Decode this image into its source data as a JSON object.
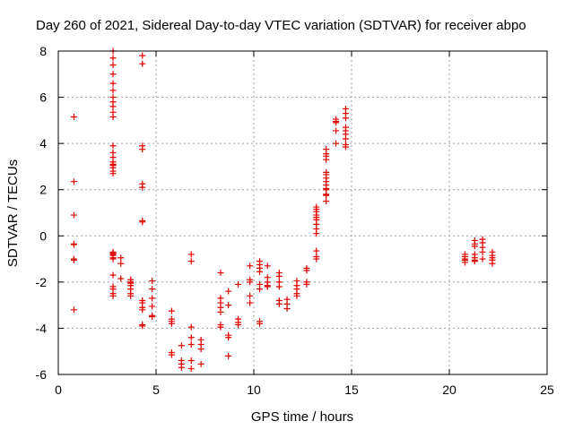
{
  "chart_data": {
    "type": "scatter",
    "title": "Day 260 of 2021, Sidereal Day-to-day VTEC variation (SDTVAR) for receiver abpo",
    "xlabel": "GPS time / hours",
    "ylabel": "SDTVAR / TECUs",
    "xlim": [
      0,
      25
    ],
    "ylim": [
      -6,
      8
    ],
    "xticks": [
      0,
      5,
      10,
      15,
      20,
      25
    ],
    "yticks": [
      -6,
      -4,
      -2,
      0,
      2,
      4,
      6,
      8
    ],
    "xtick_labels": [
      "0",
      "5",
      "10",
      "15",
      "20",
      "25"
    ],
    "ytick_labels": [
      "-6",
      "-4",
      "-2",
      "0",
      "2",
      "4",
      "6",
      "8"
    ],
    "grid": true,
    "marker": "+",
    "color": "#e00000",
    "series": [
      {
        "name": "SDTVAR",
        "x": [
          0.8,
          0.8,
          0.8,
          0.8,
          0.8,
          0.8,
          0.8,
          0.8,
          2.8,
          2.8,
          2.8,
          2.8,
          2.8,
          2.8,
          2.8,
          2.8,
          2.8,
          2.8,
          2.8,
          2.8,
          2.8,
          2.8,
          2.8,
          2.8,
          2.8,
          2.8,
          2.8,
          2.8,
          2.8,
          2.8,
          2.8,
          2.8,
          2.8,
          2.8,
          2.8,
          2.8,
          2.8,
          2.8,
          2.8,
          3.2,
          3.2,
          3.2,
          3.7,
          3.7,
          3.7,
          3.7,
          3.7,
          3.7,
          3.7,
          4.3,
          4.3,
          4.3,
          4.3,
          4.3,
          4.3,
          4.3,
          4.3,
          4.3,
          4.3,
          4.3,
          4.3,
          4.3,
          4.3,
          4.8,
          4.8,
          4.8,
          4.8,
          4.8,
          4.8,
          5.8,
          5.8,
          5.8,
          5.8,
          5.8,
          5.8,
          6.3,
          6.3,
          6.3,
          6.3,
          6.8,
          6.8,
          6.8,
          6.8,
          6.8,
          6.8,
          6.8,
          7.3,
          7.3,
          7.3,
          7.3,
          8.3,
          8.3,
          8.3,
          8.3,
          8.3,
          8.3,
          8.3,
          8.7,
          8.7,
          8.7,
          8.7,
          8.7,
          9.2,
          9.2,
          9.2,
          9.2,
          9.8,
          9.8,
          9.8,
          9.8,
          9.8,
          10.3,
          10.3,
          10.3,
          10.3,
          10.3,
          10.3,
          10.3,
          10.3,
          10.7,
          10.7,
          10.7,
          10.7,
          10.7,
          11.3,
          11.3,
          11.3,
          11.3,
          11.3,
          11.3,
          11.7,
          11.7,
          11.7,
          12.2,
          12.2,
          12.2,
          12.2,
          12.2,
          12.7,
          12.7,
          12.7,
          12.7,
          13.2,
          13.2,
          13.2,
          13.2,
          13.2,
          13.2,
          13.2,
          13.2,
          13.2,
          13.2,
          13.2,
          13.2,
          13.7,
          13.7,
          13.7,
          13.7,
          13.7,
          13.7,
          13.7,
          13.7,
          13.7,
          13.7,
          13.7,
          13.7,
          13.7,
          13.7,
          14.2,
          14.2,
          14.2,
          14.2,
          14.2,
          14.7,
          14.7,
          14.7,
          14.7,
          14.7,
          14.7,
          14.7,
          14.7,
          14.7,
          20.8,
          20.8,
          20.8,
          20.8,
          20.8,
          21.3,
          21.3,
          21.3,
          21.3,
          21.3,
          21.3,
          21.3,
          21.7,
          21.7,
          21.7,
          21.7,
          21.7,
          22.2,
          22.2,
          22.2,
          22.2,
          22.2
        ],
        "y": [
          5.15,
          2.35,
          0.9,
          -0.35,
          -1.0,
          -1.05,
          -3.2,
          -0.38,
          8.0,
          7.7,
          7.4,
          7.0,
          6.6,
          6.3,
          6.0,
          5.8,
          5.6,
          5.35,
          5.15,
          3.9,
          3.6,
          3.4,
          3.2,
          3.05,
          2.95,
          2.8,
          2.7,
          -0.7,
          -0.8,
          -0.95,
          -1.7,
          -2.2,
          -2.3,
          -2.5,
          -2.6,
          -1.0,
          -0.85,
          -0.75,
          3.1,
          -0.95,
          -1.2,
          -1.85,
          -1.9,
          -2.05,
          -2.15,
          -2.3,
          -2.5,
          -2.6,
          -2.0,
          7.8,
          7.45,
          3.9,
          3.75,
          2.25,
          2.1,
          0.65,
          0.6,
          -2.8,
          -2.9,
          -3.1,
          -3.2,
          -3.85,
          -3.9,
          -1.95,
          -2.3,
          -2.7,
          -3.05,
          -3.45,
          -3.5,
          -3.25,
          -3.6,
          -3.7,
          -3.8,
          -5.05,
          -5.15,
          -4.75,
          -5.4,
          -5.55,
          -5.7,
          -0.8,
          -1.1,
          -3.95,
          -4.4,
          -4.7,
          -5.4,
          -5.75,
          -4.5,
          -4.7,
          -4.9,
          -5.55,
          -1.6,
          -2.7,
          -2.9,
          -3.1,
          -3.3,
          -3.85,
          -3.95,
          -2.4,
          -3.0,
          -4.3,
          -4.4,
          -5.2,
          -2.1,
          -3.6,
          -3.75,
          -3.85,
          -1.3,
          -1.9,
          -2.0,
          -2.6,
          -2.9,
          -1.1,
          -1.25,
          -1.4,
          -1.55,
          -2.1,
          -2.3,
          -3.7,
          -3.8,
          -1.3,
          -1.8,
          -2.0,
          -2.15,
          -2.2,
          -1.6,
          -1.75,
          -2.0,
          -2.2,
          -2.8,
          -2.95,
          -2.75,
          -2.95,
          -3.15,
          -1.95,
          -2.15,
          -2.3,
          -2.5,
          -2.6,
          -1.4,
          -1.5,
          -2.0,
          -2.1,
          -0.65,
          -0.9,
          -1.0,
          0.1,
          0.3,
          0.5,
          0.7,
          0.8,
          0.9,
          1.05,
          1.15,
          1.25,
          1.5,
          1.8,
          2.05,
          2.35,
          2.5,
          2.65,
          2.75,
          3.3,
          3.45,
          3.55,
          3.75,
          2.2,
          2.0,
          1.75,
          4.9,
          5.05,
          4.55,
          4.0,
          4.95,
          5.5,
          5.3,
          5.1,
          4.7,
          4.55,
          4.4,
          4.2,
          3.95,
          3.85,
          -0.8,
          -0.9,
          -1.0,
          -1.05,
          -1.15,
          -0.2,
          -0.35,
          -0.45,
          -0.8,
          -0.95,
          -1.05,
          -1.1,
          -0.15,
          -0.3,
          -0.5,
          -0.7,
          -1.0,
          -0.7,
          -0.85,
          -0.95,
          -1.05,
          -1.2
        ]
      }
    ]
  }
}
